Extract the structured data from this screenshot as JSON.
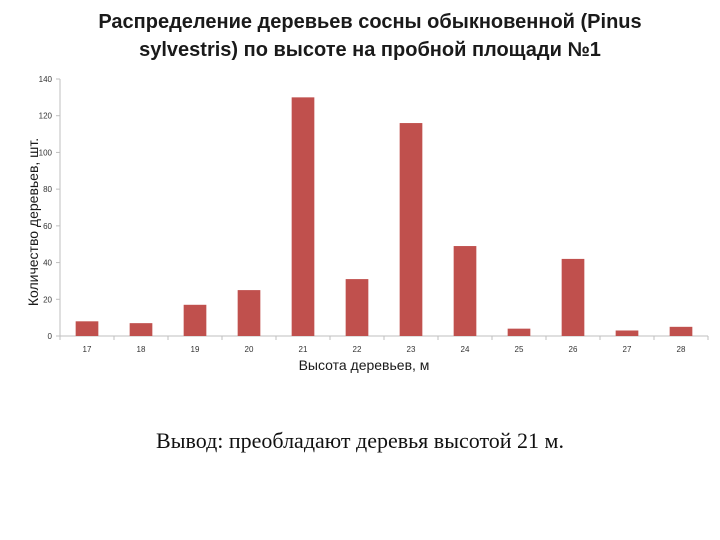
{
  "title": "Распределение деревьев сосны обыкновенной  (Pinus sylvestris) по высоте на пробной площади №1",
  "conclusion": "Вывод: преобладают деревья высотой  21 м.",
  "chart_data": {
    "type": "bar",
    "categories": [
      "17",
      "18",
      "19",
      "20",
      "21",
      "22",
      "23",
      "24",
      "25",
      "26",
      "27",
      "28"
    ],
    "values": [
      8,
      7,
      17,
      25,
      130,
      31,
      116,
      49,
      4,
      42,
      3,
      5
    ],
    "xlabel": "Высота деревьев, м",
    "ylabel": "Количество деревьев, шт.",
    "ylim": [
      0,
      140
    ],
    "yticks": [
      0,
      20,
      40,
      60,
      80,
      100,
      120,
      140
    ],
    "bar_color": "#c0504d",
    "axis_color": "#bfbfbf",
    "grid": false
  }
}
